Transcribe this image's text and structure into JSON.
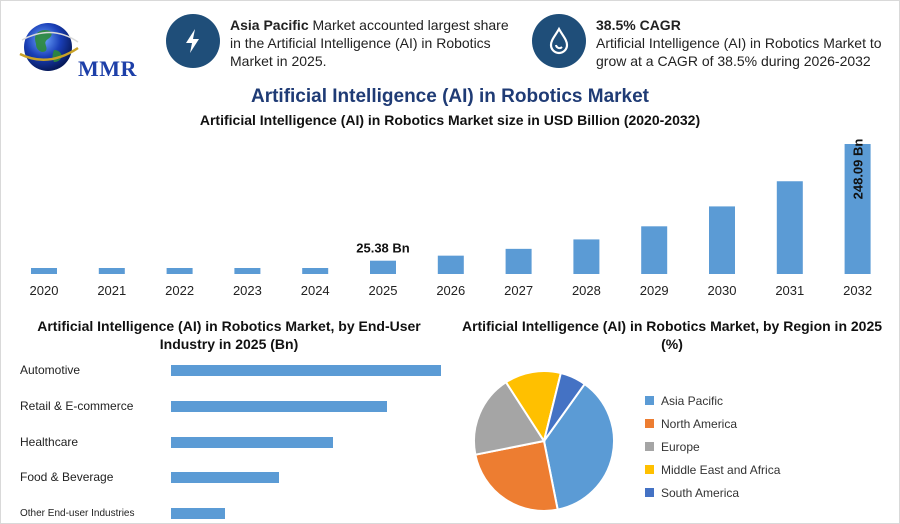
{
  "header": {
    "logo_text": "MMR",
    "info1": {
      "bold": "Asia Pacific",
      "text": " Market accounted largest share in the Artificial Intelligence (AI) in Robotics Market in 2025."
    },
    "info2": {
      "title": "38.5% CAGR",
      "text": "Artificial Intelligence (AI) in Robotics Market to grow at a CAGR of 38.5% during 2026-2032"
    }
  },
  "main_title": "Artificial Intelligence (AI) in Robotics Market",
  "colors": {
    "bar": "#5b9bd5",
    "icon_bg": "#1f4e79",
    "title": "#1f3b75"
  },
  "chart_data": [
    {
      "type": "bar",
      "title": "Artificial Intelligence (AI) in Robotics Market size in USD Billion (2020-2032)",
      "categories": [
        "2020",
        "2021",
        "2022",
        "2023",
        "2024",
        "2025",
        "2026",
        "2027",
        "2028",
        "2029",
        "2030",
        "2031",
        "2032"
      ],
      "values": [
        4,
        4,
        4,
        4,
        4,
        25.38,
        35,
        48,
        66,
        91,
        129,
        177,
        248.09
      ],
      "data_labels": {
        "2025": "25.38 Bn",
        "2032": "248.09 Bn"
      },
      "ylim": [
        0,
        248.09
      ]
    },
    {
      "type": "bar",
      "orientation": "horizontal",
      "title": "Artificial Intelligence (AI) in Robotics Market, by End-User Industry in 2025 (Bn)",
      "categories": [
        "Automotive",
        "Retail & E-commerce",
        "Healthcare",
        "Food & Beverage",
        "Other End-user Industries"
      ],
      "values": [
        100,
        80,
        60,
        40,
        20
      ]
    },
    {
      "type": "pie",
      "title": "Artificial Intelligence (AI) in Robotics Market, by Region in 2025 (%)",
      "categories": [
        "Asia Pacific",
        "North America",
        "Europe",
        "Middle East and Africa",
        "South America"
      ],
      "values": [
        37,
        25,
        19,
        13,
        6
      ],
      "colors": [
        "#5b9bd5",
        "#ed7d31",
        "#a5a5a5",
        "#ffc000",
        "#4472c4"
      ],
      "legend_position": "right"
    }
  ]
}
